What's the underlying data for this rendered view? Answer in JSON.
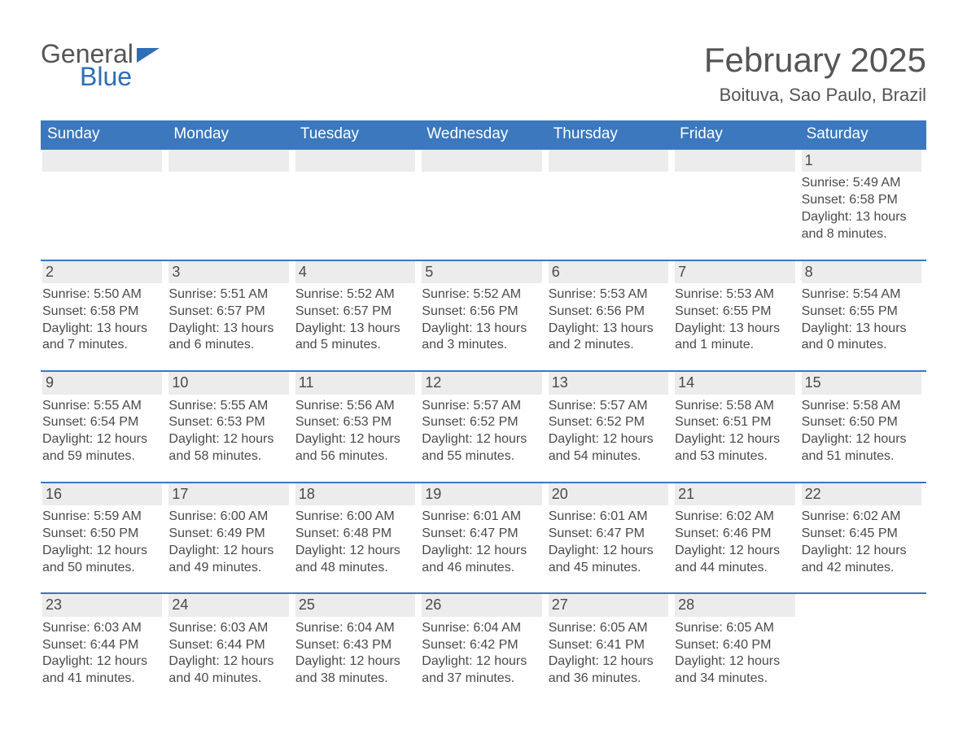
{
  "branding": {
    "logo_word1": "General",
    "logo_word2": "Blue",
    "logo_color_primary": "#2f6eb5",
    "logo_color_text": "#555555"
  },
  "header": {
    "month_title": "February 2025",
    "location": "Boituva, Sao Paulo, Brazil"
  },
  "styling": {
    "header_band_color": "#3b78bd",
    "header_band_text_color": "#ffffff",
    "daynum_bar_bg": "#ececec",
    "rule_color": "#3b78bd",
    "body_text_color": "#4a4a4a",
    "page_bg": "#ffffff",
    "title_fontsize_pt": 32,
    "location_fontsize_pt": 17,
    "dow_fontsize_pt": 14,
    "cell_fontsize_pt": 12
  },
  "days_of_week": [
    "Sunday",
    "Monday",
    "Tuesday",
    "Wednesday",
    "Thursday",
    "Friday",
    "Saturday"
  ],
  "weeks": [
    {
      "rule": false,
      "cells": [
        {
          "empty": true
        },
        {
          "empty": true
        },
        {
          "empty": true
        },
        {
          "empty": true
        },
        {
          "empty": true
        },
        {
          "empty": true
        },
        {
          "day": "1",
          "sunrise": "Sunrise: 5:49 AM",
          "sunset": "Sunset: 6:58 PM",
          "daylight": "Daylight: 13 hours and 8 minutes."
        }
      ]
    },
    {
      "rule": true,
      "cells": [
        {
          "day": "2",
          "sunrise": "Sunrise: 5:50 AM",
          "sunset": "Sunset: 6:58 PM",
          "daylight": "Daylight: 13 hours and 7 minutes."
        },
        {
          "day": "3",
          "sunrise": "Sunrise: 5:51 AM",
          "sunset": "Sunset: 6:57 PM",
          "daylight": "Daylight: 13 hours and 6 minutes."
        },
        {
          "day": "4",
          "sunrise": "Sunrise: 5:52 AM",
          "sunset": "Sunset: 6:57 PM",
          "daylight": "Daylight: 13 hours and 5 minutes."
        },
        {
          "day": "5",
          "sunrise": "Sunrise: 5:52 AM",
          "sunset": "Sunset: 6:56 PM",
          "daylight": "Daylight: 13 hours and 3 minutes."
        },
        {
          "day": "6",
          "sunrise": "Sunrise: 5:53 AM",
          "sunset": "Sunset: 6:56 PM",
          "daylight": "Daylight: 13 hours and 2 minutes."
        },
        {
          "day": "7",
          "sunrise": "Sunrise: 5:53 AM",
          "sunset": "Sunset: 6:55 PM",
          "daylight": "Daylight: 13 hours and 1 minute."
        },
        {
          "day": "8",
          "sunrise": "Sunrise: 5:54 AM",
          "sunset": "Sunset: 6:55 PM",
          "daylight": "Daylight: 13 hours and 0 minutes."
        }
      ]
    },
    {
      "rule": true,
      "cells": [
        {
          "day": "9",
          "sunrise": "Sunrise: 5:55 AM",
          "sunset": "Sunset: 6:54 PM",
          "daylight": "Daylight: 12 hours and 59 minutes."
        },
        {
          "day": "10",
          "sunrise": "Sunrise: 5:55 AM",
          "sunset": "Sunset: 6:53 PM",
          "daylight": "Daylight: 12 hours and 58 minutes."
        },
        {
          "day": "11",
          "sunrise": "Sunrise: 5:56 AM",
          "sunset": "Sunset: 6:53 PM",
          "daylight": "Daylight: 12 hours and 56 minutes."
        },
        {
          "day": "12",
          "sunrise": "Sunrise: 5:57 AM",
          "sunset": "Sunset: 6:52 PM",
          "daylight": "Daylight: 12 hours and 55 minutes."
        },
        {
          "day": "13",
          "sunrise": "Sunrise: 5:57 AM",
          "sunset": "Sunset: 6:52 PM",
          "daylight": "Daylight: 12 hours and 54 minutes."
        },
        {
          "day": "14",
          "sunrise": "Sunrise: 5:58 AM",
          "sunset": "Sunset: 6:51 PM",
          "daylight": "Daylight: 12 hours and 53 minutes."
        },
        {
          "day": "15",
          "sunrise": "Sunrise: 5:58 AM",
          "sunset": "Sunset: 6:50 PM",
          "daylight": "Daylight: 12 hours and 51 minutes."
        }
      ]
    },
    {
      "rule": true,
      "cells": [
        {
          "day": "16",
          "sunrise": "Sunrise: 5:59 AM",
          "sunset": "Sunset: 6:50 PM",
          "daylight": "Daylight: 12 hours and 50 minutes."
        },
        {
          "day": "17",
          "sunrise": "Sunrise: 6:00 AM",
          "sunset": "Sunset: 6:49 PM",
          "daylight": "Daylight: 12 hours and 49 minutes."
        },
        {
          "day": "18",
          "sunrise": "Sunrise: 6:00 AM",
          "sunset": "Sunset: 6:48 PM",
          "daylight": "Daylight: 12 hours and 48 minutes."
        },
        {
          "day": "19",
          "sunrise": "Sunrise: 6:01 AM",
          "sunset": "Sunset: 6:47 PM",
          "daylight": "Daylight: 12 hours and 46 minutes."
        },
        {
          "day": "20",
          "sunrise": "Sunrise: 6:01 AM",
          "sunset": "Sunset: 6:47 PM",
          "daylight": "Daylight: 12 hours and 45 minutes."
        },
        {
          "day": "21",
          "sunrise": "Sunrise: 6:02 AM",
          "sunset": "Sunset: 6:46 PM",
          "daylight": "Daylight: 12 hours and 44 minutes."
        },
        {
          "day": "22",
          "sunrise": "Sunrise: 6:02 AM",
          "sunset": "Sunset: 6:45 PM",
          "daylight": "Daylight: 12 hours and 42 minutes."
        }
      ]
    },
    {
      "rule": true,
      "cells": [
        {
          "day": "23",
          "sunrise": "Sunrise: 6:03 AM",
          "sunset": "Sunset: 6:44 PM",
          "daylight": "Daylight: 12 hours and 41 minutes."
        },
        {
          "day": "24",
          "sunrise": "Sunrise: 6:03 AM",
          "sunset": "Sunset: 6:44 PM",
          "daylight": "Daylight: 12 hours and 40 minutes."
        },
        {
          "day": "25",
          "sunrise": "Sunrise: 6:04 AM",
          "sunset": "Sunset: 6:43 PM",
          "daylight": "Daylight: 12 hours and 38 minutes."
        },
        {
          "day": "26",
          "sunrise": "Sunrise: 6:04 AM",
          "sunset": "Sunset: 6:42 PM",
          "daylight": "Daylight: 12 hours and 37 minutes."
        },
        {
          "day": "27",
          "sunrise": "Sunrise: 6:05 AM",
          "sunset": "Sunset: 6:41 PM",
          "daylight": "Daylight: 12 hours and 36 minutes."
        },
        {
          "day": "28",
          "sunrise": "Sunrise: 6:05 AM",
          "sunset": "Sunset: 6:40 PM",
          "daylight": "Daylight: 12 hours and 34 minutes."
        },
        {
          "empty": true,
          "no_bar": true
        }
      ]
    }
  ]
}
